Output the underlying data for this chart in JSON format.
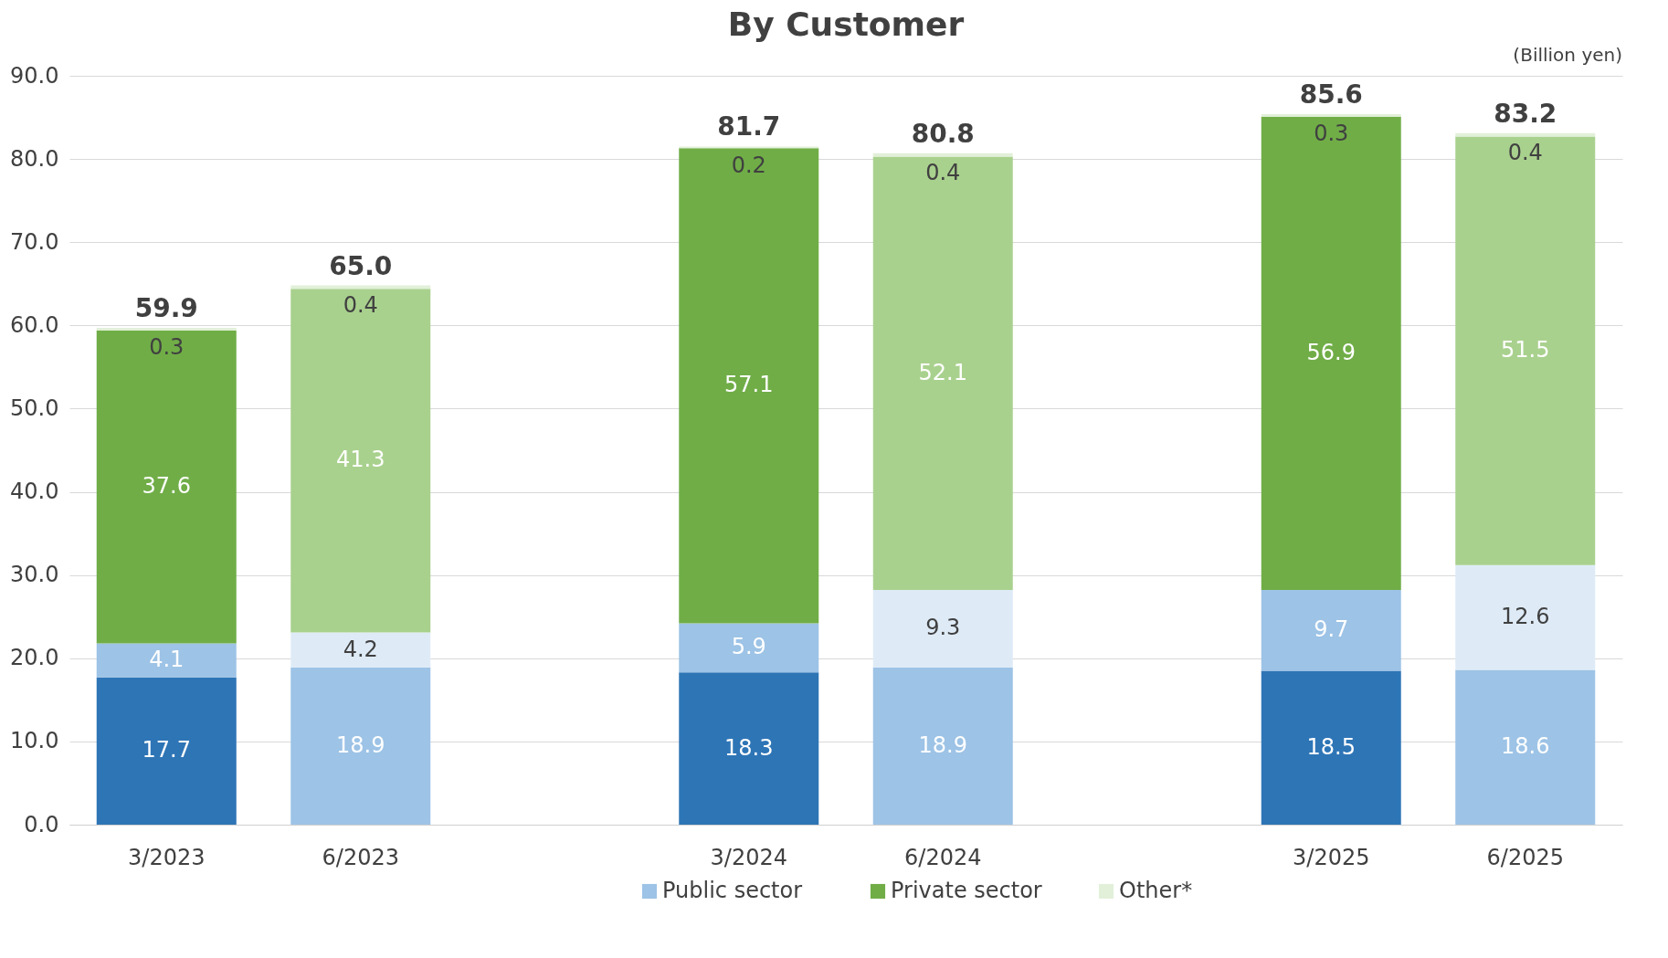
{
  "chart_data": {
    "type": "bar",
    "title": "By Customer",
    "stacked": true,
    "categories": [
      "3/2023",
      "6/2023",
      null,
      "3/2024",
      "6/2024",
      null,
      "3/2025",
      "6/2025"
    ],
    "series": [
      {
        "name": null,
        "colors": [
          "#2e75b6",
          "#9dc3e6",
          null,
          "#2e75b6",
          "#9dc3e6",
          null,
          "#2e75b6",
          "#9dc3e6"
        ],
        "values": [
          17.7,
          18.9,
          null,
          18.3,
          18.9,
          null,
          18.5,
          18.6
        ]
      },
      {
        "name": "Public sector",
        "color": "#9dc3e6",
        "colors": [
          "#9dc3e6",
          "#deebf7",
          null,
          "#9dc3e6",
          "#deebf7",
          null,
          "#9dc3e6",
          "#deebf7"
        ],
        "values": [
          4.1,
          4.2,
          null,
          5.9,
          9.3,
          null,
          9.7,
          12.6
        ]
      },
      {
        "name": "Private sector",
        "color": "#70ad47",
        "colors": [
          "#70ad47",
          "#a9d18e",
          null,
          "#70ad47",
          "#a9d18e",
          null,
          "#70ad47",
          "#a9d18e"
        ],
        "values": [
          37.6,
          41.3,
          null,
          57.1,
          52.1,
          null,
          56.9,
          51.5
        ]
      },
      {
        "name": "Other*",
        "color": "#e2f0d9",
        "colors": [
          "#e2f0d9",
          "#e2f0d9",
          null,
          "#e2f0d9",
          "#e2f0d9",
          null,
          "#e2f0d9",
          "#e2f0d9"
        ],
        "values": [
          0.3,
          0.4,
          null,
          0.2,
          0.4,
          null,
          0.3,
          0.4
        ]
      }
    ],
    "totals": [
      "59.9",
      "65.0",
      null,
      "81.7",
      "80.8",
      null,
      "85.6",
      "83.2"
    ],
    "data_labels": true,
    "ylim": [
      0,
      90
    ],
    "yticks": [
      {
        "value": 0,
        "label": "0.0"
      },
      {
        "value": 10,
        "label": "10.0"
      },
      {
        "value": 20,
        "label": "20.0"
      },
      {
        "value": 30,
        "label": "30.0"
      },
      {
        "value": 40,
        "label": "40.0"
      },
      {
        "value": 50,
        "label": "50.0"
      },
      {
        "value": 60,
        "label": "60.0"
      },
      {
        "value": 70,
        "label": "70.0"
      },
      {
        "value": 80,
        "label": "80.0"
      },
      {
        "value": 90,
        "label": "90.0"
      }
    ],
    "grid": "y",
    "legend": "bottom",
    "annotations": [
      "(Billion yen)"
    ]
  }
}
